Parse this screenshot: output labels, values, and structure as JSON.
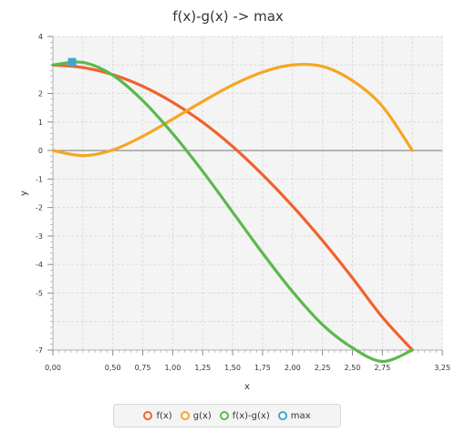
{
  "chart_data": {
    "type": "line",
    "title": "f(x)-g(x) -> max",
    "xlabel": "x",
    "ylabel": "y",
    "xlim": [
      0,
      3.25
    ],
    "ylim": [
      -7,
      4
    ],
    "x_ticks": [
      "0,00",
      "0,50",
      "0,75",
      "1,00",
      "1,25",
      "1,50",
      "1,75",
      "2,00",
      "2,25",
      "2,50",
      "2,75",
      "3,25"
    ],
    "y_ticks": [
      "4",
      "2",
      "1",
      "0",
      "-1",
      "-2",
      "-3",
      "-4",
      "-5",
      "-7"
    ],
    "grid": true,
    "legend_position": "bottom",
    "series": [
      {
        "name": "f(x)",
        "color": "#f0622b",
        "x": [
          0,
          0.25,
          0.5,
          0.75,
          1.0,
          1.25,
          1.5,
          1.75,
          2.0,
          2.25,
          2.5,
          2.75,
          3.0
        ],
        "y": [
          3.0,
          2.91,
          2.66,
          2.25,
          1.69,
          0.99,
          0.14,
          -0.85,
          -1.95,
          -3.16,
          -4.47,
          -5.85,
          -7.0
        ]
      },
      {
        "name": "g(x)",
        "color": "#f6a623",
        "x": [
          0,
          0.25,
          0.5,
          0.75,
          1.0,
          1.25,
          1.5,
          1.75,
          2.0,
          2.25,
          2.5,
          2.75,
          3.0
        ],
        "y": [
          0.0,
          -0.18,
          0.02,
          0.5,
          1.1,
          1.72,
          2.3,
          2.75,
          3.0,
          2.95,
          2.45,
          1.55,
          0.0
        ]
      },
      {
        "name": "f(x)-g(x)",
        "color": "#5cb84d",
        "x": [
          0,
          0.25,
          0.5,
          0.75,
          1.0,
          1.25,
          1.5,
          1.75,
          2.0,
          2.25,
          2.5,
          2.75,
          3.0
        ],
        "y": [
          3.0,
          3.09,
          2.64,
          1.75,
          0.59,
          -0.73,
          -2.16,
          -3.6,
          -4.95,
          -6.11,
          -6.92,
          -7.4,
          -7.0
        ]
      }
    ],
    "max_point": {
      "name": "max",
      "color": "#3ea7c9",
      "x": 0.16,
      "y": 3.1
    }
  }
}
